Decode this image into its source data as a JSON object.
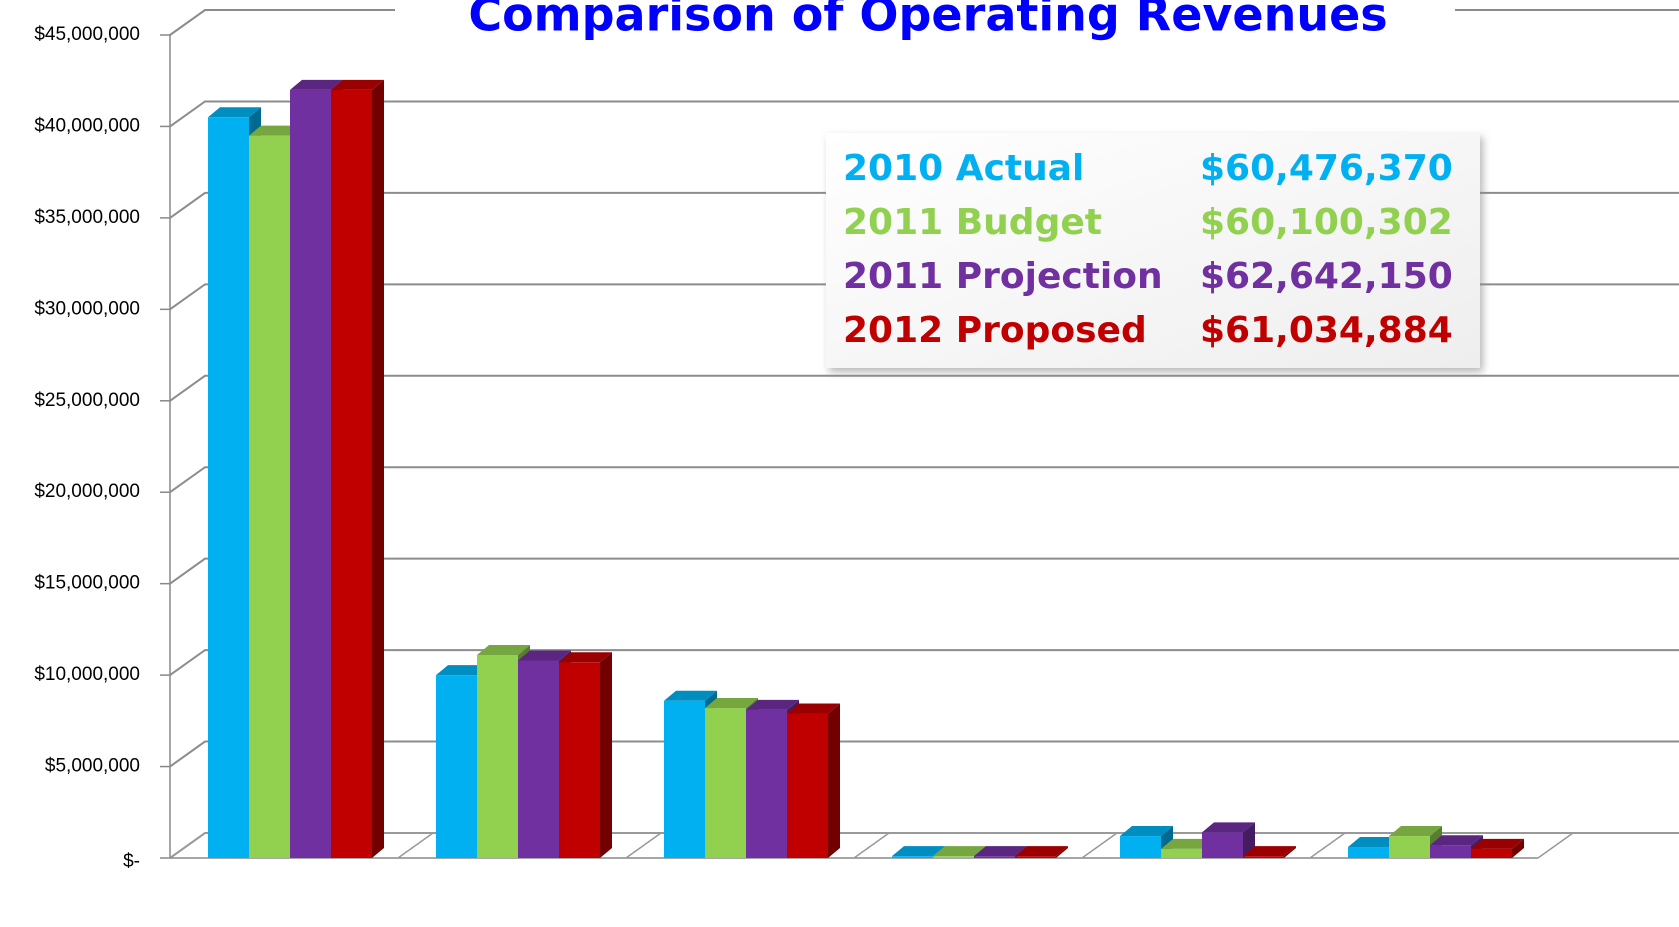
{
  "chart_data": {
    "type": "bar3d",
    "title": "Comparison of Operating Revenues",
    "categories": [
      null,
      null,
      null,
      null,
      null,
      null
    ],
    "series": [
      {
        "name": "2010 Actual",
        "total": "$60,476,370",
        "color": "#00b0f0",
        "values": [
          40500000,
          10000000,
          8600000,
          100000,
          1200000,
          600000
        ]
      },
      {
        "name": "2011 Budget",
        "total": "$60,100,302",
        "color": "#92d050",
        "values": [
          39500000,
          11100000,
          8200000,
          100000,
          500000,
          1200000
        ]
      },
      {
        "name": "2011 Projection",
        "total": "$62,642,150",
        "color": "#7030a0",
        "values": [
          42000000,
          10800000,
          8100000,
          100000,
          1400000,
          700000
        ]
      },
      {
        "name": "2012 Proposed",
        "total": "$61,034,884",
        "color": "#c00000",
        "values": [
          42000000,
          10700000,
          7900000,
          100000,
          100000,
          500000
        ]
      }
    ],
    "ylim": [
      0,
      45000000
    ],
    "yticks": [
      {
        "value": 0,
        "label": "$-"
      },
      {
        "value": 5000000,
        "label": "$5,000,000"
      },
      {
        "value": 10000000,
        "label": "$10,000,000"
      },
      {
        "value": 15000000,
        "label": "$15,000,000"
      },
      {
        "value": 20000000,
        "label": "$20,000,000"
      },
      {
        "value": 25000000,
        "label": "$25,000,000"
      },
      {
        "value": 30000000,
        "label": "$30,000,000"
      },
      {
        "value": 35000000,
        "label": "$35,000,000"
      },
      {
        "value": 40000000,
        "label": "$40,000,000"
      },
      {
        "value": 45000000,
        "label": "$45,000,000"
      }
    ],
    "grid": true
  }
}
